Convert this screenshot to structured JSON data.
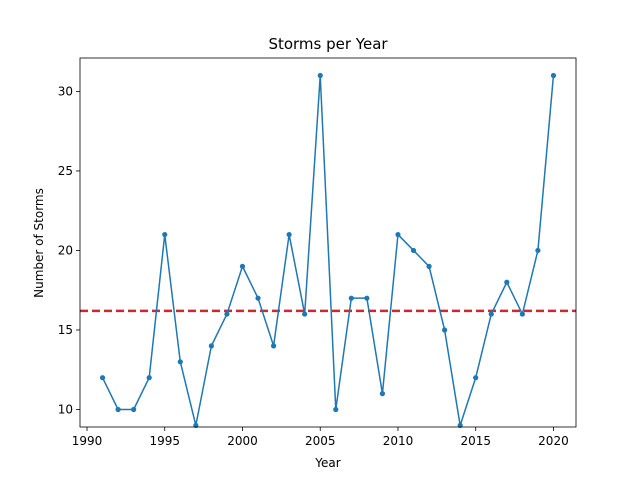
{
  "chart_data": {
    "type": "line",
    "title": "Storms per Year",
    "xlabel": "Year",
    "ylabel": "Number of Storms",
    "xlim": [
      1989.55,
      2021.45
    ],
    "ylim": [
      8.9,
      32.1
    ],
    "x_ticks": [
      1990,
      1995,
      2000,
      2005,
      2010,
      2015,
      2020
    ],
    "y_ticks": [
      10,
      15,
      20,
      25,
      30
    ],
    "grid": false,
    "legend": "none",
    "series": [
      {
        "color": "#1f77b4",
        "marker": "circle",
        "x": [
          1991,
          1992,
          1993,
          1994,
          1995,
          1996,
          1997,
          1998,
          1999,
          2000,
          2001,
          2002,
          2003,
          2004,
          2005,
          2006,
          2007,
          2008,
          2009,
          2010,
          2011,
          2012,
          2013,
          2014,
          2015,
          2016,
          2017,
          2018,
          2019,
          2020
        ],
        "values": [
          12,
          10,
          10,
          12,
          21,
          13,
          9,
          14,
          16,
          19,
          17,
          14,
          21,
          16,
          31,
          10,
          17,
          17,
          11,
          21,
          20,
          19,
          15,
          9,
          12,
          16,
          18,
          16,
          20,
          31
        ]
      }
    ],
    "reference_line": {
      "orientation": "horizontal",
      "value": 16.2,
      "color": "#d62728",
      "style": "dashed"
    }
  }
}
